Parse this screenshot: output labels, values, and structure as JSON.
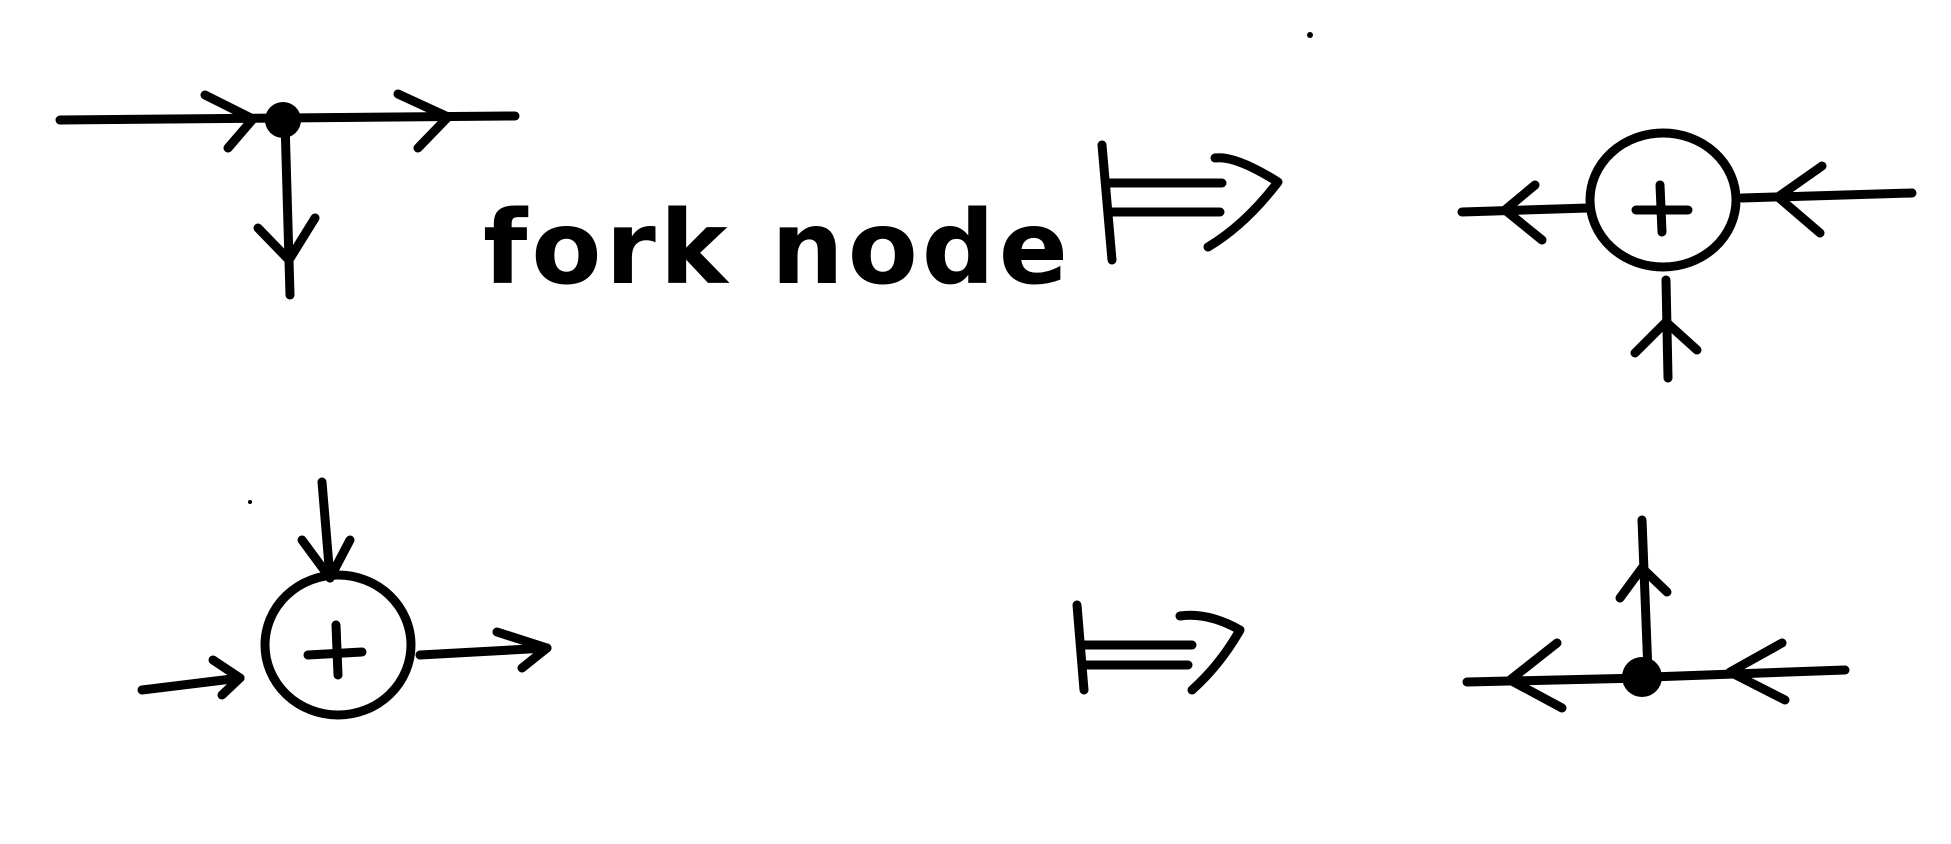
{
  "diagram": {
    "label": "fork node",
    "sum_symbol": "+",
    "ink_color": "#000000",
    "background_color": "#ffffff"
  }
}
